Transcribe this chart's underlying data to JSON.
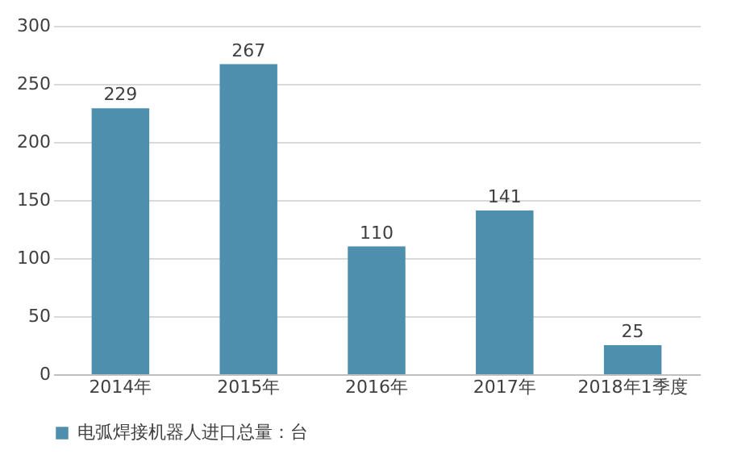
{
  "chart_data": {
    "type": "bar",
    "categories": [
      "2014年",
      "2015年",
      "2016年",
      "2017年",
      "2018年1季度"
    ],
    "series": [
      {
        "name": "电弧焊接机器人进口总量：台",
        "color": "#4f8fae",
        "values": [
          229,
          267,
          110,
          141,
          25
        ]
      }
    ],
    "ylim": [
      0,
      300
    ],
    "yticks": [
      0,
      50,
      100,
      150,
      200,
      250,
      300
    ],
    "grid": "y",
    "legend": "bottom",
    "data_labels": true
  }
}
